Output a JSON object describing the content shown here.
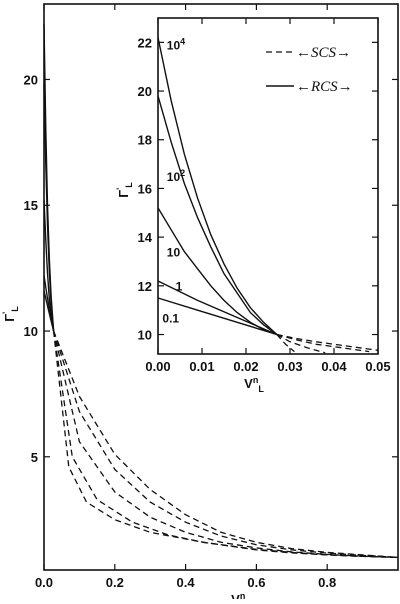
{
  "chart_data": [
    {
      "type": "line",
      "name": "main-panel",
      "xlabel": "V_L^n",
      "ylabel": "Γ'_L",
      "xlim": [
        0,
        1.0
      ],
      "ylim": [
        0.5,
        23
      ],
      "xticks": [
        0.0,
        0.2,
        0.4,
        0.6,
        0.8
      ],
      "xtick_labels": [
        "0.0",
        "0.2",
        "0.4",
        "0.6",
        "0.8"
      ],
      "yticks": [
        5,
        10,
        15,
        20
      ],
      "ytick_labels": [
        "5",
        "10",
        "15",
        "20"
      ],
      "series": [
        {
          "style": "solid",
          "points": [
            [
              0.0,
              22.2
            ],
            [
              0.005,
              18.0
            ],
            [
              0.01,
              15.0
            ],
            [
              0.015,
              12.9
            ],
            [
              0.02,
              11.4
            ],
            [
              0.027,
              10.0
            ]
          ]
        },
        {
          "style": "solid",
          "points": [
            [
              0.0,
              19.8
            ],
            [
              0.005,
              16.6
            ],
            [
              0.01,
              14.2
            ],
            [
              0.015,
              12.4
            ],
            [
              0.02,
              11.1
            ],
            [
              0.027,
              10.0
            ]
          ]
        },
        {
          "style": "solid",
          "points": [
            [
              0.0,
              15.2
            ],
            [
              0.005,
              13.6
            ],
            [
              0.01,
              12.3
            ],
            [
              0.015,
              11.3
            ],
            [
              0.02,
              10.6
            ],
            [
              0.027,
              10.0
            ]
          ]
        },
        {
          "style": "solid",
          "points": [
            [
              0.0,
              12.2
            ],
            [
              0.01,
              11.3
            ],
            [
              0.02,
              10.5
            ],
            [
              0.027,
              10.0
            ]
          ]
        },
        {
          "style": "solid",
          "points": [
            [
              0.0,
              11.6
            ],
            [
              0.01,
              11.0
            ],
            [
              0.02,
              10.4
            ],
            [
              0.027,
              10.0
            ]
          ]
        },
        {
          "style": "dashed",
          "points": [
            [
              0.027,
              10.0
            ],
            [
              0.1,
              7.4
            ],
            [
              0.2,
              5.1
            ],
            [
              0.3,
              3.7
            ],
            [
              0.4,
              2.7
            ],
            [
              0.5,
              2.0
            ],
            [
              0.6,
              1.6
            ],
            [
              0.7,
              1.35
            ],
            [
              0.8,
              1.2
            ],
            [
              0.9,
              1.1
            ],
            [
              1.0,
              1.0
            ]
          ]
        },
        {
          "style": "dashed",
          "points": [
            [
              0.027,
              10.0
            ],
            [
              0.1,
              6.8
            ],
            [
              0.2,
              4.5
            ],
            [
              0.3,
              3.2
            ],
            [
              0.4,
              2.4
            ],
            [
              0.5,
              1.85
            ],
            [
              0.6,
              1.5
            ],
            [
              0.7,
              1.3
            ],
            [
              0.8,
              1.17
            ],
            [
              0.9,
              1.08
            ],
            [
              1.0,
              1.0
            ]
          ]
        },
        {
          "style": "dashed",
          "points": [
            [
              0.027,
              10.0
            ],
            [
              0.1,
              5.6
            ],
            [
              0.2,
              3.6
            ],
            [
              0.3,
              2.6
            ],
            [
              0.4,
              2.0
            ],
            [
              0.5,
              1.6
            ],
            [
              0.6,
              1.38
            ],
            [
              0.7,
              1.22
            ],
            [
              0.8,
              1.12
            ],
            [
              0.9,
              1.05
            ],
            [
              1.0,
              1.0
            ]
          ]
        },
        {
          "style": "dashed",
          "points": [
            [
              0.027,
              10.0
            ],
            [
              0.08,
              5.0
            ],
            [
              0.15,
              3.3
            ],
            [
              0.25,
              2.4
            ],
            [
              0.35,
              1.9
            ],
            [
              0.45,
              1.6
            ],
            [
              0.6,
              1.32
            ],
            [
              0.7,
              1.2
            ],
            [
              0.8,
              1.1
            ],
            [
              0.9,
              1.04
            ],
            [
              1.0,
              1.0
            ]
          ]
        },
        {
          "style": "dashed",
          "points": [
            [
              0.027,
              10.0
            ],
            [
              0.07,
              4.6
            ],
            [
              0.12,
              3.2
            ],
            [
              0.2,
              2.5
            ],
            [
              0.3,
              2.0
            ],
            [
              0.45,
              1.6
            ],
            [
              0.6,
              1.3
            ],
            [
              0.7,
              1.18
            ],
            [
              0.8,
              1.1
            ],
            [
              0.9,
              1.04
            ],
            [
              1.0,
              1.0
            ]
          ]
        }
      ]
    },
    {
      "type": "line",
      "name": "inset-panel",
      "xlabel": "V_L^n",
      "ylabel": "Γ'_L",
      "xlim": [
        0,
        0.05
      ],
      "ylim": [
        9.2,
        23
      ],
      "xticks": [
        0.0,
        0.01,
        0.02,
        0.03,
        0.04,
        0.05
      ],
      "xtick_labels": [
        "0.00",
        "0.01",
        "0.02",
        "0.03",
        "0.04",
        "0.05"
      ],
      "yticks": [
        10,
        12,
        14,
        16,
        18,
        20,
        22
      ],
      "ytick_labels": [
        "10",
        "12",
        "14",
        "16",
        "18",
        "20",
        "22"
      ],
      "curve_labels": [
        {
          "base": "10",
          "exp": "4",
          "x": 0.002,
          "y": 21.7
        },
        {
          "base": "10",
          "exp": "2",
          "x": 0.002,
          "y": 16.3
        },
        {
          "base": "10",
          "exp": "",
          "x": 0.002,
          "y": 13.2
        },
        {
          "base": "1",
          "exp": "",
          "x": 0.004,
          "y": 11.8
        },
        {
          "base": "0.1",
          "exp": "",
          "x": 0.001,
          "y": 10.5
        }
      ],
      "legend": [
        {
          "label": "SCS",
          "style": "dashed"
        },
        {
          "label": "RCS",
          "style": "solid"
        }
      ],
      "legend_position": "top-right",
      "series": [
        {
          "style": "solid",
          "points": [
            [
              0.0,
              22.2
            ],
            [
              0.003,
              19.6
            ],
            [
              0.006,
              17.4
            ],
            [
              0.009,
              15.6
            ],
            [
              0.012,
              14.1
            ],
            [
              0.015,
              12.9
            ],
            [
              0.018,
              11.9
            ],
            [
              0.021,
              11.1
            ],
            [
              0.024,
              10.5
            ],
            [
              0.027,
              10.0
            ]
          ]
        },
        {
          "style": "solid",
          "points": [
            [
              0.0,
              19.8
            ],
            [
              0.003,
              17.9
            ],
            [
              0.006,
              16.2
            ],
            [
              0.009,
              14.8
            ],
            [
              0.012,
              13.6
            ],
            [
              0.015,
              12.5
            ],
            [
              0.018,
              11.7
            ],
            [
              0.021,
              10.9
            ],
            [
              0.024,
              10.4
            ],
            [
              0.027,
              10.0
            ]
          ]
        },
        {
          "style": "solid",
          "points": [
            [
              0.0,
              15.2
            ],
            [
              0.003,
              14.3
            ],
            [
              0.006,
              13.4
            ],
            [
              0.009,
              12.7
            ],
            [
              0.012,
              12.0
            ],
            [
              0.015,
              11.4
            ],
            [
              0.018,
              10.9
            ],
            [
              0.021,
              10.5
            ],
            [
              0.024,
              10.2
            ],
            [
              0.027,
              10.0
            ]
          ]
        },
        {
          "style": "solid",
          "points": [
            [
              0.0,
              12.2
            ],
            [
              0.009,
              11.4
            ],
            [
              0.018,
              10.7
            ],
            [
              0.027,
              10.0
            ]
          ]
        },
        {
          "style": "solid",
          "points": [
            [
              0.0,
              11.5
            ],
            [
              0.009,
              11.0
            ],
            [
              0.018,
              10.5
            ],
            [
              0.027,
              10.0
            ]
          ]
        },
        {
          "style": "dashed",
          "points": [
            [
              0.027,
              10.0
            ],
            [
              0.031,
              9.85
            ],
            [
              0.036,
              9.7
            ],
            [
              0.042,
              9.55
            ],
            [
              0.048,
              9.4
            ],
            [
              0.05,
              9.35
            ]
          ]
        },
        {
          "style": "dashed",
          "points": [
            [
              0.027,
              10.0
            ],
            [
              0.031,
              9.8
            ],
            [
              0.036,
              9.6
            ],
            [
              0.042,
              9.45
            ],
            [
              0.048,
              9.3
            ]
          ]
        },
        {
          "style": "dashed",
          "points": [
            [
              0.027,
              10.0
            ],
            [
              0.03,
              9.7
            ],
            [
              0.034,
              9.45
            ],
            [
              0.038,
              9.25
            ]
          ]
        },
        {
          "style": "dashed",
          "points": [
            [
              0.027,
              10.0
            ],
            [
              0.029,
              9.6
            ],
            [
              0.031,
              9.3
            ]
          ]
        }
      ]
    }
  ]
}
